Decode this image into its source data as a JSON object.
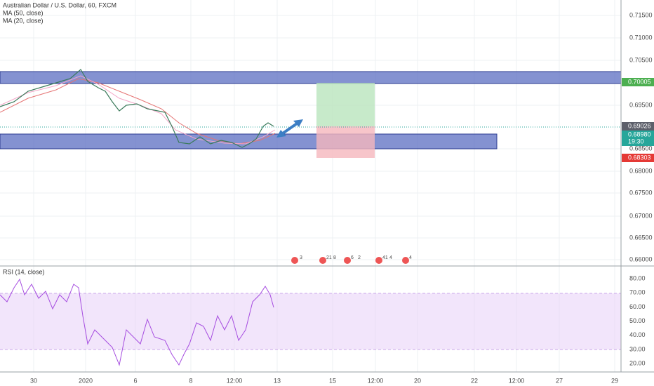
{
  "header": {
    "title": "Australian Dollar / U.S. Dollar, 60, FXCM",
    "indicators": [
      "MA (50, close)",
      "MA (20, close)"
    ]
  },
  "price_axis": {
    "ticks": [
      "0.71500",
      "0.71000",
      "0.70500",
      "0.69500",
      "0.68500",
      "0.68000",
      "0.67500",
      "0.67000",
      "0.66500",
      "0.66000"
    ],
    "badges": {
      "target": "0.70005",
      "last": "0.69026",
      "current": "0.68980",
      "countdown": "19:30",
      "stop": "0.68303"
    }
  },
  "events": [
    "3",
    "21",
    "8",
    "6",
    "2",
    "41",
    "4",
    "4"
  ],
  "rsi": {
    "title": "RSI (14, close)",
    "ticks": [
      "80.00",
      "70.00",
      "60.00",
      "50.00",
      "40.00",
      "30.00",
      "20.00"
    ]
  },
  "time_axis": {
    "ticks": [
      "30",
      "2020",
      "6",
      "8",
      "12:00",
      "13",
      "15",
      "12:00",
      "20",
      "22",
      "12:00",
      "27",
      "29"
    ]
  }
}
